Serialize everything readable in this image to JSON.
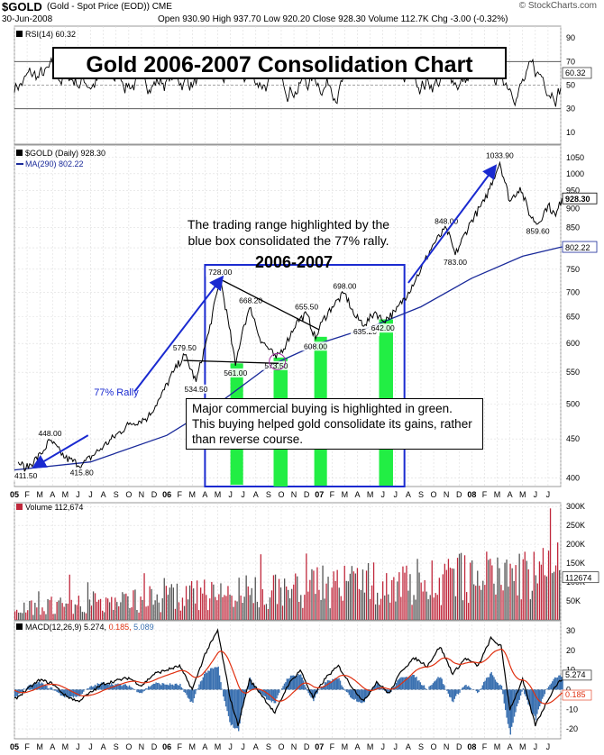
{
  "header": {
    "symbol": "$GOLD",
    "description": "(Gold - Spot Price (EOD))  CME",
    "date": "30-Jun-2008",
    "ohlc": "Open 930.90  High 937.70  Low 920.20  Close 928.30  Volume 112.7K  Chg -3.00 (-0.32%)",
    "watermark": "© StockCharts.com"
  },
  "annotations": {
    "title": "Gold 2006-2007 Consolidation Chart",
    "range_note_line1": "The trading range highlighted by the",
    "range_note_line2": "blue box consolidated the 77% rally.",
    "period": "2006-2007",
    "rally": "77% Rally",
    "buying_note": "Major commercial buying is highlighted in green.  This buying helped gold consolidate its gains, rather than reverse course."
  },
  "colors": {
    "price": "#000000",
    "ma": "#1a2a9a",
    "box": "#1a2ad0",
    "green": "#22ee44",
    "volume": "#c0283c",
    "macd_signal": "#e03010",
    "histogram": "#3a70b0",
    "arrow": "#1a2ad0"
  },
  "chart_data": [
    {
      "type": "line",
      "panel": "rsi",
      "legend": "RSI(14) 60.32",
      "last_value": "60.32",
      "y_ticks": [
        "90",
        "70",
        "50",
        "30",
        "10"
      ],
      "ylim": [
        0,
        100
      ],
      "reference_lines": [
        70,
        50,
        30
      ]
    },
    {
      "type": "line",
      "panel": "price",
      "legend_price": "$GOLD (Daily) 928.30",
      "legend_ma": "MA(290) 802.22",
      "last_price": "928.30",
      "last_ma": "802.22",
      "y_scale": "log",
      "ylim": [
        390,
        1090
      ],
      "y_ticks": [
        "1050",
        "1000",
        "950",
        "900",
        "850",
        "800",
        "750",
        "700",
        "650",
        "600",
        "550",
        "500",
        "450",
        "400"
      ],
      "price_points": [
        {
          "t": 0.3,
          "v": 420
        },
        {
          "t": 0.9,
          "v": 411.5
        },
        {
          "t": 2.1,
          "v": 430
        },
        {
          "t": 2.8,
          "v": 448
        },
        {
          "t": 4.0,
          "v": 425
        },
        {
          "t": 5.3,
          "v": 415.8
        },
        {
          "t": 7.0,
          "v": 440
        },
        {
          "t": 9.0,
          "v": 470
        },
        {
          "t": 10.5,
          "v": 480
        },
        {
          "t": 11.5,
          "v": 510
        },
        {
          "t": 12.5,
          "v": 550
        },
        {
          "t": 13.4,
          "v": 579.5
        },
        {
          "t": 14.3,
          "v": 534.5
        },
        {
          "t": 15.3,
          "v": 620
        },
        {
          "t": 16.2,
          "v": 728
        },
        {
          "t": 16.9,
          "v": 630
        },
        {
          "t": 17.4,
          "v": 561
        },
        {
          "t": 18.0,
          "v": 630
        },
        {
          "t": 18.6,
          "v": 668.2
        },
        {
          "t": 19.3,
          "v": 610
        },
        {
          "t": 20.6,
          "v": 573.5
        },
        {
          "t": 21.4,
          "v": 600
        },
        {
          "t": 22.2,
          "v": 640
        },
        {
          "t": 23.0,
          "v": 655.5
        },
        {
          "t": 23.7,
          "v": 608
        },
        {
          "t": 24.2,
          "v": 640
        },
        {
          "t": 25.0,
          "v": 670
        },
        {
          "t": 26.0,
          "v": 698
        },
        {
          "t": 26.8,
          "v": 650
        },
        {
          "t": 27.6,
          "v": 635.2
        },
        {
          "t": 28.4,
          "v": 660
        },
        {
          "t": 29.0,
          "v": 642
        },
        {
          "t": 30.0,
          "v": 660
        },
        {
          "t": 31.0,
          "v": 700
        },
        {
          "t": 32.0,
          "v": 750
        },
        {
          "t": 33.0,
          "v": 810
        },
        {
          "t": 34.0,
          "v": 848
        },
        {
          "t": 34.7,
          "v": 783
        },
        {
          "t": 36.0,
          "v": 870
        },
        {
          "t": 37.0,
          "v": 920
        },
        {
          "t": 38.2,
          "v": 1033.9
        },
        {
          "t": 39.0,
          "v": 920
        },
        {
          "t": 39.8,
          "v": 960
        },
        {
          "t": 40.6,
          "v": 880
        },
        {
          "t": 41.2,
          "v": 859.6
        },
        {
          "t": 42.0,
          "v": 910
        },
        {
          "t": 42.6,
          "v": 880
        },
        {
          "t": 43.1,
          "v": 928.3
        }
      ],
      "ma_points": [
        {
          "t": 0.0,
          "v": 410
        },
        {
          "t": 6.0,
          "v": 420
        },
        {
          "t": 12.0,
          "v": 455
        },
        {
          "t": 16.0,
          "v": 500
        },
        {
          "t": 20.0,
          "v": 560
        },
        {
          "t": 24.0,
          "v": 600
        },
        {
          "t": 28.0,
          "v": 630
        },
        {
          "t": 32.0,
          "v": 670
        },
        {
          "t": 36.0,
          "v": 730
        },
        {
          "t": 40.0,
          "v": 780
        },
        {
          "t": 43.1,
          "v": 802.22
        }
      ],
      "price_labels": [
        {
          "text": "411.50",
          "t": 0.9,
          "v": 411.5,
          "pos": "below"
        },
        {
          "text": "448.00",
          "t": 2.8,
          "v": 448,
          "pos": "above"
        },
        {
          "text": "415.80",
          "t": 5.3,
          "v": 415.8,
          "pos": "below"
        },
        {
          "text": "579.50",
          "t": 13.4,
          "v": 579.5,
          "pos": "above"
        },
        {
          "text": "534.50",
          "t": 14.3,
          "v": 534.5,
          "pos": "below"
        },
        {
          "text": "728.00",
          "t": 16.2,
          "v": 728,
          "pos": "above"
        },
        {
          "text": "561.00",
          "t": 17.4,
          "v": 561,
          "pos": "below"
        },
        {
          "text": "668.20",
          "t": 18.6,
          "v": 668.2,
          "pos": "above"
        },
        {
          "text": "573.50",
          "t": 20.6,
          "v": 573.5,
          "pos": "below"
        },
        {
          "text": "655.50",
          "t": 23.0,
          "v": 655.5,
          "pos": "above"
        },
        {
          "text": "608.00",
          "t": 23.7,
          "v": 608,
          "pos": "below"
        },
        {
          "text": "698.00",
          "t": 26.0,
          "v": 698,
          "pos": "above"
        },
        {
          "text": "635.20",
          "t": 27.6,
          "v": 635.2,
          "pos": "below"
        },
        {
          "text": "642.00",
          "t": 29.0,
          "v": 642,
          "pos": "below"
        },
        {
          "text": "848.00",
          "t": 34.0,
          "v": 848,
          "pos": "above"
        },
        {
          "text": "783.00",
          "t": 34.7,
          "v": 783,
          "pos": "below"
        },
        {
          "text": "1033.90",
          "t": 38.2,
          "v": 1033.9,
          "pos": "above"
        },
        {
          "text": "859.60",
          "t": 41.2,
          "v": 859.6,
          "pos": "below"
        }
      ],
      "consolidation_range": {
        "t_start": 15.0,
        "t_end": 30.7,
        "v_low": 390,
        "v_high": 760
      },
      "commercial_buying_bars": [
        {
          "t_start": 17.0,
          "t_end": 18.0,
          "v_low": 392,
          "v_high": 565
        },
        {
          "t_start": 20.4,
          "t_end": 21.5,
          "v_low": 390,
          "v_high": 575
        },
        {
          "t_start": 23.6,
          "t_end": 24.6,
          "v_low": 391,
          "v_high": 612
        },
        {
          "t_start": 28.7,
          "t_end": 29.8,
          "v_low": 391,
          "v_high": 645
        }
      ]
    },
    {
      "type": "bar",
      "panel": "volume",
      "legend": "Volume 112,674",
      "last_value": "112674",
      "y_ticks": [
        "300K",
        "250K",
        "200K",
        "150K",
        "100K",
        "50K"
      ],
      "ylim": [
        0,
        310000
      ]
    },
    {
      "type": "line",
      "panel": "macd",
      "legend_name": "MACD(12,26,9)",
      "macd": "5.274",
      "signal": "0.185",
      "histogram": "5.089",
      "y_ticks": [
        "30",
        "20",
        "10",
        "0",
        "-10",
        "-20"
      ],
      "ylim": [
        -25,
        35
      ],
      "macd_points": [
        {
          "t": 0,
          "v": -5
        },
        {
          "t": 2,
          "v": 5
        },
        {
          "t": 3,
          "v": 3
        },
        {
          "t": 4,
          "v": -3
        },
        {
          "t": 5,
          "v": -6
        },
        {
          "t": 7,
          "v": 3
        },
        {
          "t": 9,
          "v": 6
        },
        {
          "t": 10,
          "v": 2
        },
        {
          "t": 11,
          "v": 8
        },
        {
          "t": 12,
          "v": 10
        },
        {
          "t": 13,
          "v": 12
        },
        {
          "t": 14,
          "v": 0
        },
        {
          "t": 15,
          "v": 18
        },
        {
          "t": 16,
          "v": 30
        },
        {
          "t": 17,
          "v": -5
        },
        {
          "t": 17.6,
          "v": -18
        },
        {
          "t": 18.5,
          "v": 5
        },
        {
          "t": 19.5,
          "v": -3
        },
        {
          "t": 20.5,
          "v": -12
        },
        {
          "t": 21.5,
          "v": 2
        },
        {
          "t": 22.5,
          "v": 10
        },
        {
          "t": 23.5,
          "v": -4
        },
        {
          "t": 24.5,
          "v": 6
        },
        {
          "t": 25.5,
          "v": 12
        },
        {
          "t": 26.5,
          "v": 2
        },
        {
          "t": 27.5,
          "v": -6
        },
        {
          "t": 28.5,
          "v": 4
        },
        {
          "t": 29.5,
          "v": -2
        },
        {
          "t": 30.5,
          "v": 10
        },
        {
          "t": 31.5,
          "v": 16
        },
        {
          "t": 32.5,
          "v": 12
        },
        {
          "t": 33.5,
          "v": 22
        },
        {
          "t": 34.5,
          "v": 8
        },
        {
          "t": 35.5,
          "v": 16
        },
        {
          "t": 36.5,
          "v": 12
        },
        {
          "t": 37.5,
          "v": 26
        },
        {
          "t": 38.3,
          "v": 22
        },
        {
          "t": 39,
          "v": -10
        },
        {
          "t": 40,
          "v": 5
        },
        {
          "t": 41,
          "v": -18
        },
        {
          "t": 42,
          "v": -5
        },
        {
          "t": 42.6,
          "v": 2
        },
        {
          "t": 43.1,
          "v": 5.274
        }
      ]
    }
  ],
  "x_axis": {
    "months_total": 43,
    "ticks": [
      "05",
      "F",
      "M",
      "A",
      "M",
      "J",
      "J",
      "A",
      "S",
      "O",
      "N",
      "D",
      "06",
      "F",
      "M",
      "A",
      "M",
      "J",
      "J",
      "A",
      "S",
      "O",
      "N",
      "D",
      "07",
      "F",
      "M",
      "A",
      "M",
      "J",
      "J",
      "A",
      "S",
      "O",
      "N",
      "D",
      "08",
      "F",
      "M",
      "A",
      "M",
      "J",
      "J"
    ]
  }
}
